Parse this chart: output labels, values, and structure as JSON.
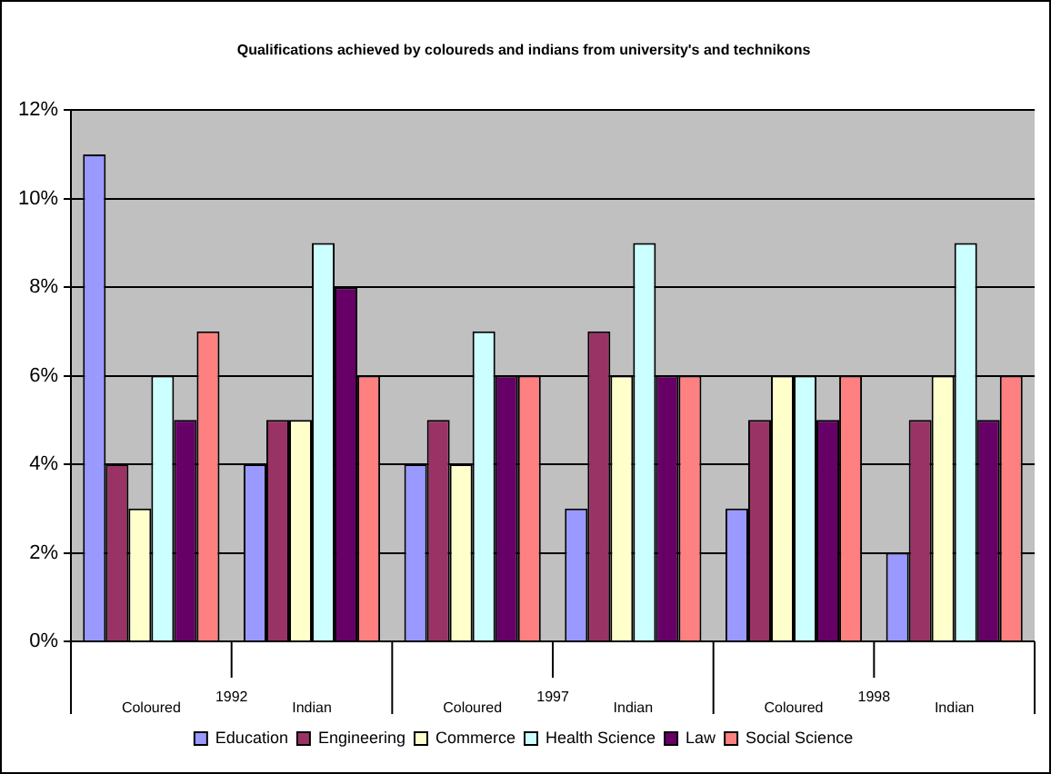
{
  "chart_data": {
    "type": "bar",
    "title": "Qualifications achieved by coloureds and indians from university's and technikons",
    "categories": [
      "Coloured",
      "Indian",
      "Coloured",
      "Indian",
      "Coloured",
      "Indian"
    ],
    "annotations": [
      "1992",
      "1997",
      "1998"
    ],
    "series": [
      {
        "name": "Education",
        "color": "#9999ff",
        "values": [
          11,
          4,
          4,
          3,
          3,
          2
        ]
      },
      {
        "name": "Engineering",
        "color": "#993366",
        "values": [
          4,
          5,
          5,
          7,
          5,
          5
        ]
      },
      {
        "name": "Commerce",
        "color": "#ffffcc",
        "values": [
          3,
          5,
          4,
          6,
          6,
          6
        ]
      },
      {
        "name": "Health Science",
        "color": "#ccffff",
        "values": [
          6,
          9,
          7,
          9,
          6,
          9
        ]
      },
      {
        "name": "Law",
        "color": "#660066",
        "values": [
          5,
          8,
          6,
          6,
          5,
          5
        ]
      },
      {
        "name": "Social Science",
        "color": "#ff8080",
        "values": [
          7,
          6,
          6,
          6,
          6,
          6
        ]
      }
    ],
    "ylim": [
      0,
      12
    ],
    "yticks": [
      {
        "value": 0,
        "label": "0%"
      },
      {
        "value": 2,
        "label": "2%"
      },
      {
        "value": 4,
        "label": "4%"
      },
      {
        "value": 6,
        "label": "6%"
      },
      {
        "value": 8,
        "label": "8%"
      },
      {
        "value": 10,
        "label": "10%"
      },
      {
        "value": 12,
        "label": "12%"
      }
    ],
    "grid": "y",
    "legend": "bottom"
  }
}
